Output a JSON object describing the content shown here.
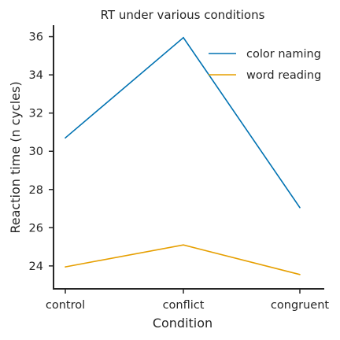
{
  "chart_data": {
    "type": "line",
    "title": "RT under various conditions",
    "xlabel": "Condition",
    "ylabel": "Reaction time (n cycles)",
    "categories": [
      "control",
      "conflict",
      "congruent"
    ],
    "ylim": [
      22.8,
      36.6
    ],
    "yticks": [
      24,
      26,
      28,
      30,
      32,
      34,
      36
    ],
    "grid": false,
    "legend_position": "top-right",
    "series": [
      {
        "name": "color naming",
        "color": "#0072b2",
        "values": [
          30.7,
          35.95,
          27.05
        ]
      },
      {
        "name": "word reading",
        "color": "#e69f00",
        "values": [
          23.95,
          25.1,
          23.55
        ]
      }
    ]
  }
}
